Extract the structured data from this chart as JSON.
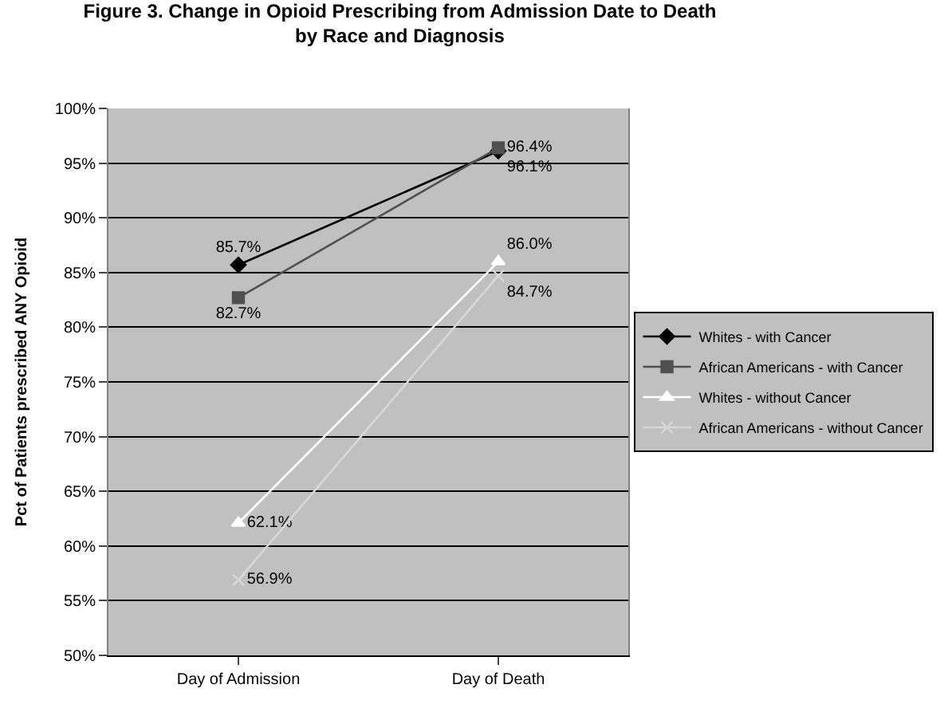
{
  "chart_data": {
    "type": "line",
    "title": "Figure 3. Change in Opioid Prescribing from Admission Date to Death\nby Race and Diagnosis",
    "ylabel": "Pct of Patients prescribed ANY Opioid",
    "categories": [
      "Day of Admission",
      "Day of Death"
    ],
    "series": [
      {
        "name": "Whites - with Cancer",
        "color": "#000000",
        "marker": "diamond",
        "values": [
          85.7,
          96.1
        ],
        "value_labels": [
          "85.7%",
          "96.1%"
        ]
      },
      {
        "name": "African Americans - with Cancer",
        "color": "#505050",
        "marker": "square",
        "values": [
          82.7,
          96.4
        ],
        "value_labels": [
          "82.7%",
          "96.4%"
        ]
      },
      {
        "name": "Whites - without Cancer",
        "color": "#ffffff",
        "marker": "triangle",
        "values": [
          62.1,
          86.0
        ],
        "value_labels": [
          "62.1%",
          "86.0%"
        ]
      },
      {
        "name": "African Americans - without Cancer",
        "color": "#d8d8d8",
        "marker": "cross",
        "values": [
          56.9,
          84.7
        ],
        "value_labels": [
          "56.9%",
          "84.7%"
        ]
      }
    ],
    "ylim": [
      50,
      100
    ],
    "yticks": [
      {
        "value": 50,
        "label": "50%"
      },
      {
        "value": 55,
        "label": "55%"
      },
      {
        "value": 60,
        "label": "60%"
      },
      {
        "value": 65,
        "label": "65%"
      },
      {
        "value": 70,
        "label": "70%"
      },
      {
        "value": 75,
        "label": "75%"
      },
      {
        "value": 80,
        "label": "80%"
      },
      {
        "value": 85,
        "label": "85%"
      },
      {
        "value": 90,
        "label": "90%"
      },
      {
        "value": 95,
        "label": "95%"
      },
      {
        "value": 100,
        "label": "100%"
      }
    ],
    "grid": "y",
    "legend": "right",
    "line_style": "solid"
  }
}
